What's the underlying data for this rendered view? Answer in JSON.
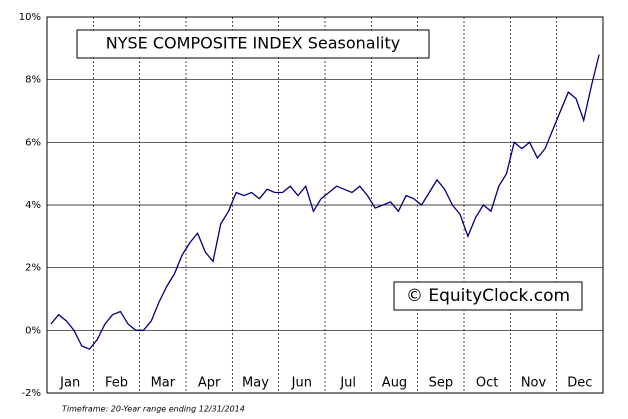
{
  "chart_data": {
    "type": "line",
    "title": "NYSE COMPOSITE INDEX Seasonality",
    "watermark": "© EquityClock.com",
    "footnote": "Timeframe: 20-Year range ending 12/31/2014",
    "month_labels": [
      "Jan",
      "Feb",
      "Mar",
      "Apr",
      "May",
      "Jun",
      "Jul",
      "Aug",
      "Sep",
      "Oct",
      "Nov",
      "Dec"
    ],
    "ylim": [
      -2,
      10
    ],
    "yticks": [
      {
        "value": -2,
        "label": "-2%"
      },
      {
        "value": 0,
        "label": "0%"
      },
      {
        "value": 2,
        "label": "2%"
      },
      {
        "value": 4,
        "label": "4%"
      },
      {
        "value": 6,
        "label": "6%"
      },
      {
        "value": 8,
        "label": "8%"
      },
      {
        "value": 10,
        "label": "10%"
      }
    ],
    "grid": true,
    "series": [
      {
        "color": "#000080",
        "values": [
          0.2,
          0.5,
          0.3,
          0.0,
          -0.5,
          -0.6,
          -0.3,
          0.2,
          0.5,
          0.6,
          0.2,
          0.0,
          0.0,
          0.3,
          0.9,
          1.4,
          1.8,
          2.4,
          2.8,
          3.1,
          2.5,
          2.2,
          3.4,
          3.8,
          4.4,
          4.3,
          4.4,
          4.2,
          4.5,
          4.4,
          4.4,
          4.6,
          4.3,
          4.6,
          3.8,
          4.2,
          4.4,
          4.6,
          4.5,
          4.4,
          4.6,
          4.3,
          3.9,
          4.0,
          4.1,
          3.8,
          4.3,
          4.2,
          4.0,
          4.4,
          4.8,
          4.5,
          4.0,
          3.7,
          3.0,
          3.6,
          4.0,
          3.8,
          4.6,
          5.0,
          6.0,
          5.8,
          6.0,
          5.5,
          5.8,
          6.4,
          7.0,
          7.6,
          7.4,
          6.7,
          7.8,
          8.8
        ]
      }
    ]
  }
}
